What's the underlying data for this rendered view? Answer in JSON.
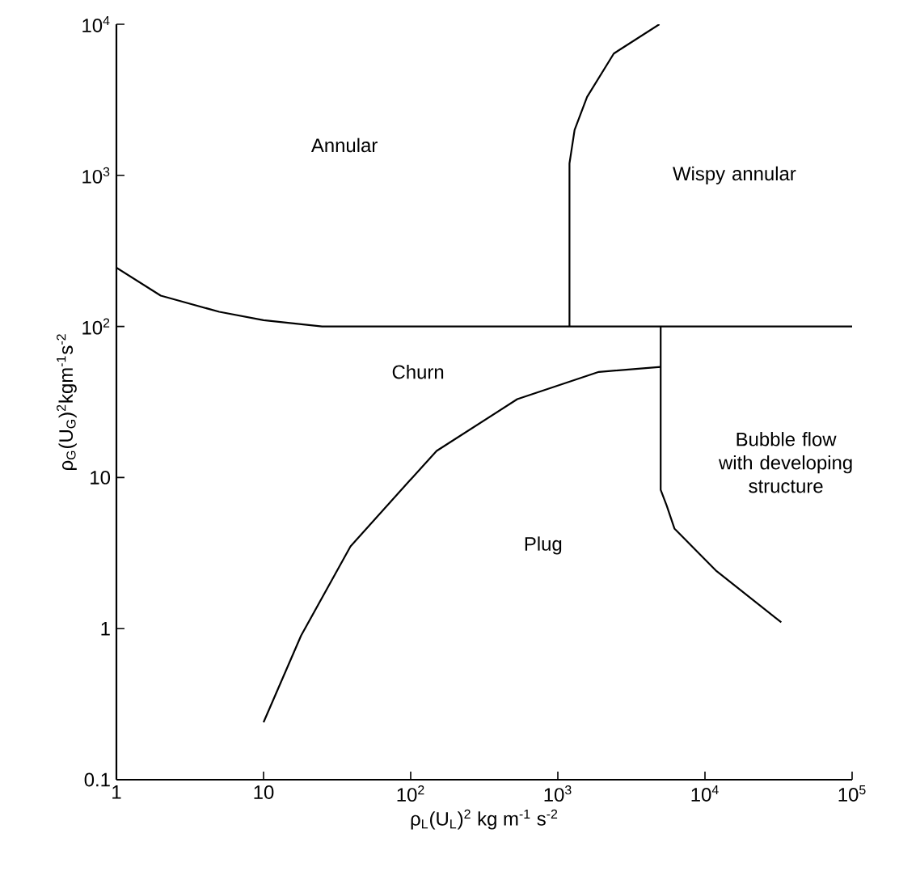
{
  "chart_data": {
    "type": "line",
    "xlabel": "ρ$_{L}$(U$_{L}$)$^{2}$ kg m$^{-1}$ s$^{-2}$",
    "ylabel": "ρ$_{G}$(U$_{G}$)$^{2}$kgm$^{-1}$s$^{-2}$",
    "log": "xy",
    "marker": "none",
    "line_style": "solid",
    "xlim": [
      1,
      100000
    ],
    "ylim": [
      0.1,
      10000
    ],
    "xticks": [
      1,
      10,
      {
        "value": 100,
        "label": "10$^{2}$"
      },
      {
        "value": 1000,
        "label": "10$^{3}$"
      },
      {
        "value": 10000,
        "label": "10$^{4}$"
      },
      {
        "value": 100000,
        "label": "10$^{5}$"
      }
    ],
    "yticks": [
      0.1,
      1,
      10,
      {
        "value": 100,
        "label": "10$^{2}$"
      },
      {
        "value": 1000,
        "label": "10$^{3}$"
      },
      {
        "value": 10000,
        "label": "10$^{4}$"
      }
    ],
    "series": [
      {
        "color": "#000000",
        "x": [
          1,
          2,
          5,
          10,
          25,
          100000
        ],
        "values": [
          245,
          160,
          125,
          110,
          100,
          100
        ]
      },
      {
        "color": "#000000",
        "x": [
          1200,
          1200,
          1300,
          1580,
          2400,
          4900
        ],
        "values": [
          100,
          1200,
          2000,
          3300,
          6400,
          10000
        ]
      },
      {
        "color": "#000000",
        "x": [
          10,
          18,
          39,
          98,
          150,
          530,
          1900,
          5000
        ],
        "values": [
          0.24,
          0.9,
          3.5,
          9.5,
          15,
          33,
          50,
          54
        ]
      },
      {
        "color": "#000000",
        "x": [
          5000,
          5000,
          5500,
          6200,
          12000,
          33000
        ],
        "values": [
          100,
          8.3,
          6.5,
          4.6,
          2.4,
          1.1
        ]
      }
    ],
    "annotations": [
      "Annular",
      "Wispy annular",
      "Churn",
      "Bubble flow with developing structure",
      "Plug"
    ]
  }
}
